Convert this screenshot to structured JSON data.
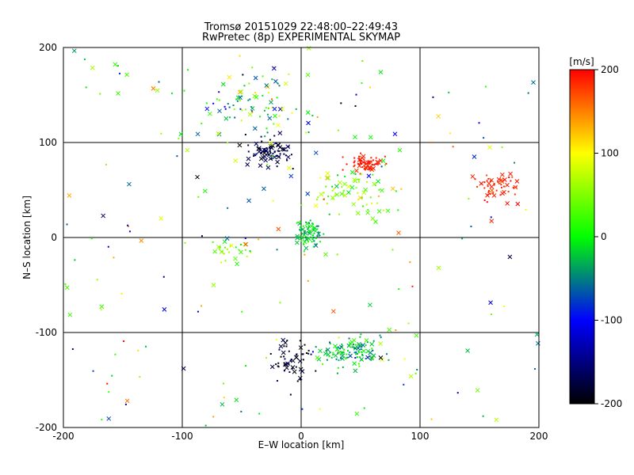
{
  "title": "Tromsø 20151029 22:48:00–22:49:43",
  "subtitle": "RwPretec (8p) EXPERIMENTAL SKYMAP",
  "colors": {
    "frame": "#000000",
    "background": "#ffffff"
  },
  "chart_data": {
    "type": "scatter",
    "title": "Tromsø 20151029 22:48:00–22:49:43",
    "subtitle": "RwPretec (8p) EXPERIMENTAL SKYMAP",
    "xlabel": "E–W location [km]",
    "ylabel": "N–S location [km]",
    "xlim": [
      -200,
      200
    ],
    "ylim": [
      -200,
      200
    ],
    "xticks": [
      -200,
      -100,
      0,
      100,
      200
    ],
    "yticks": [
      -200,
      -100,
      0,
      100,
      200
    ],
    "grid": true,
    "markers": [
      "cross",
      "dot"
    ],
    "colorbar": {
      "label": "[m/s]",
      "range": [
        -200,
        200
      ],
      "ticks": [
        -200,
        -100,
        0,
        100,
        200
      ],
      "colormap": [
        "#000000",
        "#0000ff",
        "#00ff00",
        "#ffff00",
        "#ff0000"
      ]
    },
    "clusters": [
      {
        "x": -25,
        "y": 90,
        "sx": 18,
        "sy": 12,
        "v": -170,
        "sv": 30,
        "n": 90
      },
      {
        "x": 55,
        "y": 78,
        "sx": 12,
        "sy": 8,
        "v": 190,
        "sv": 15,
        "n": 70
      },
      {
        "x": 165,
        "y": 55,
        "sx": 15,
        "sy": 12,
        "v": 185,
        "sv": 20,
        "n": 55
      },
      {
        "x": 5,
        "y": 5,
        "sx": 10,
        "sy": 12,
        "v": -20,
        "sv": 40,
        "n": 80
      },
      {
        "x": 40,
        "y": -120,
        "sx": 22,
        "sy": 12,
        "v": -30,
        "sv": 60,
        "n": 110
      },
      {
        "x": -10,
        "y": -130,
        "sx": 15,
        "sy": 20,
        "v": -180,
        "sv": 30,
        "n": 60
      },
      {
        "x": 40,
        "y": 50,
        "sx": 25,
        "sy": 20,
        "v": 40,
        "sv": 80,
        "n": 70
      },
      {
        "x": -60,
        "y": -15,
        "sx": 12,
        "sy": 10,
        "v": 60,
        "sv": 60,
        "n": 25
      },
      {
        "x": -40,
        "y": 140,
        "sx": 40,
        "sy": 30,
        "v": 0,
        "sv": 150,
        "n": 90
      },
      {
        "x": 0,
        "y": 0,
        "sx": 100,
        "sy": 100,
        "v": 0,
        "sv": 200,
        "n": 200
      }
    ],
    "seed": 7
  }
}
